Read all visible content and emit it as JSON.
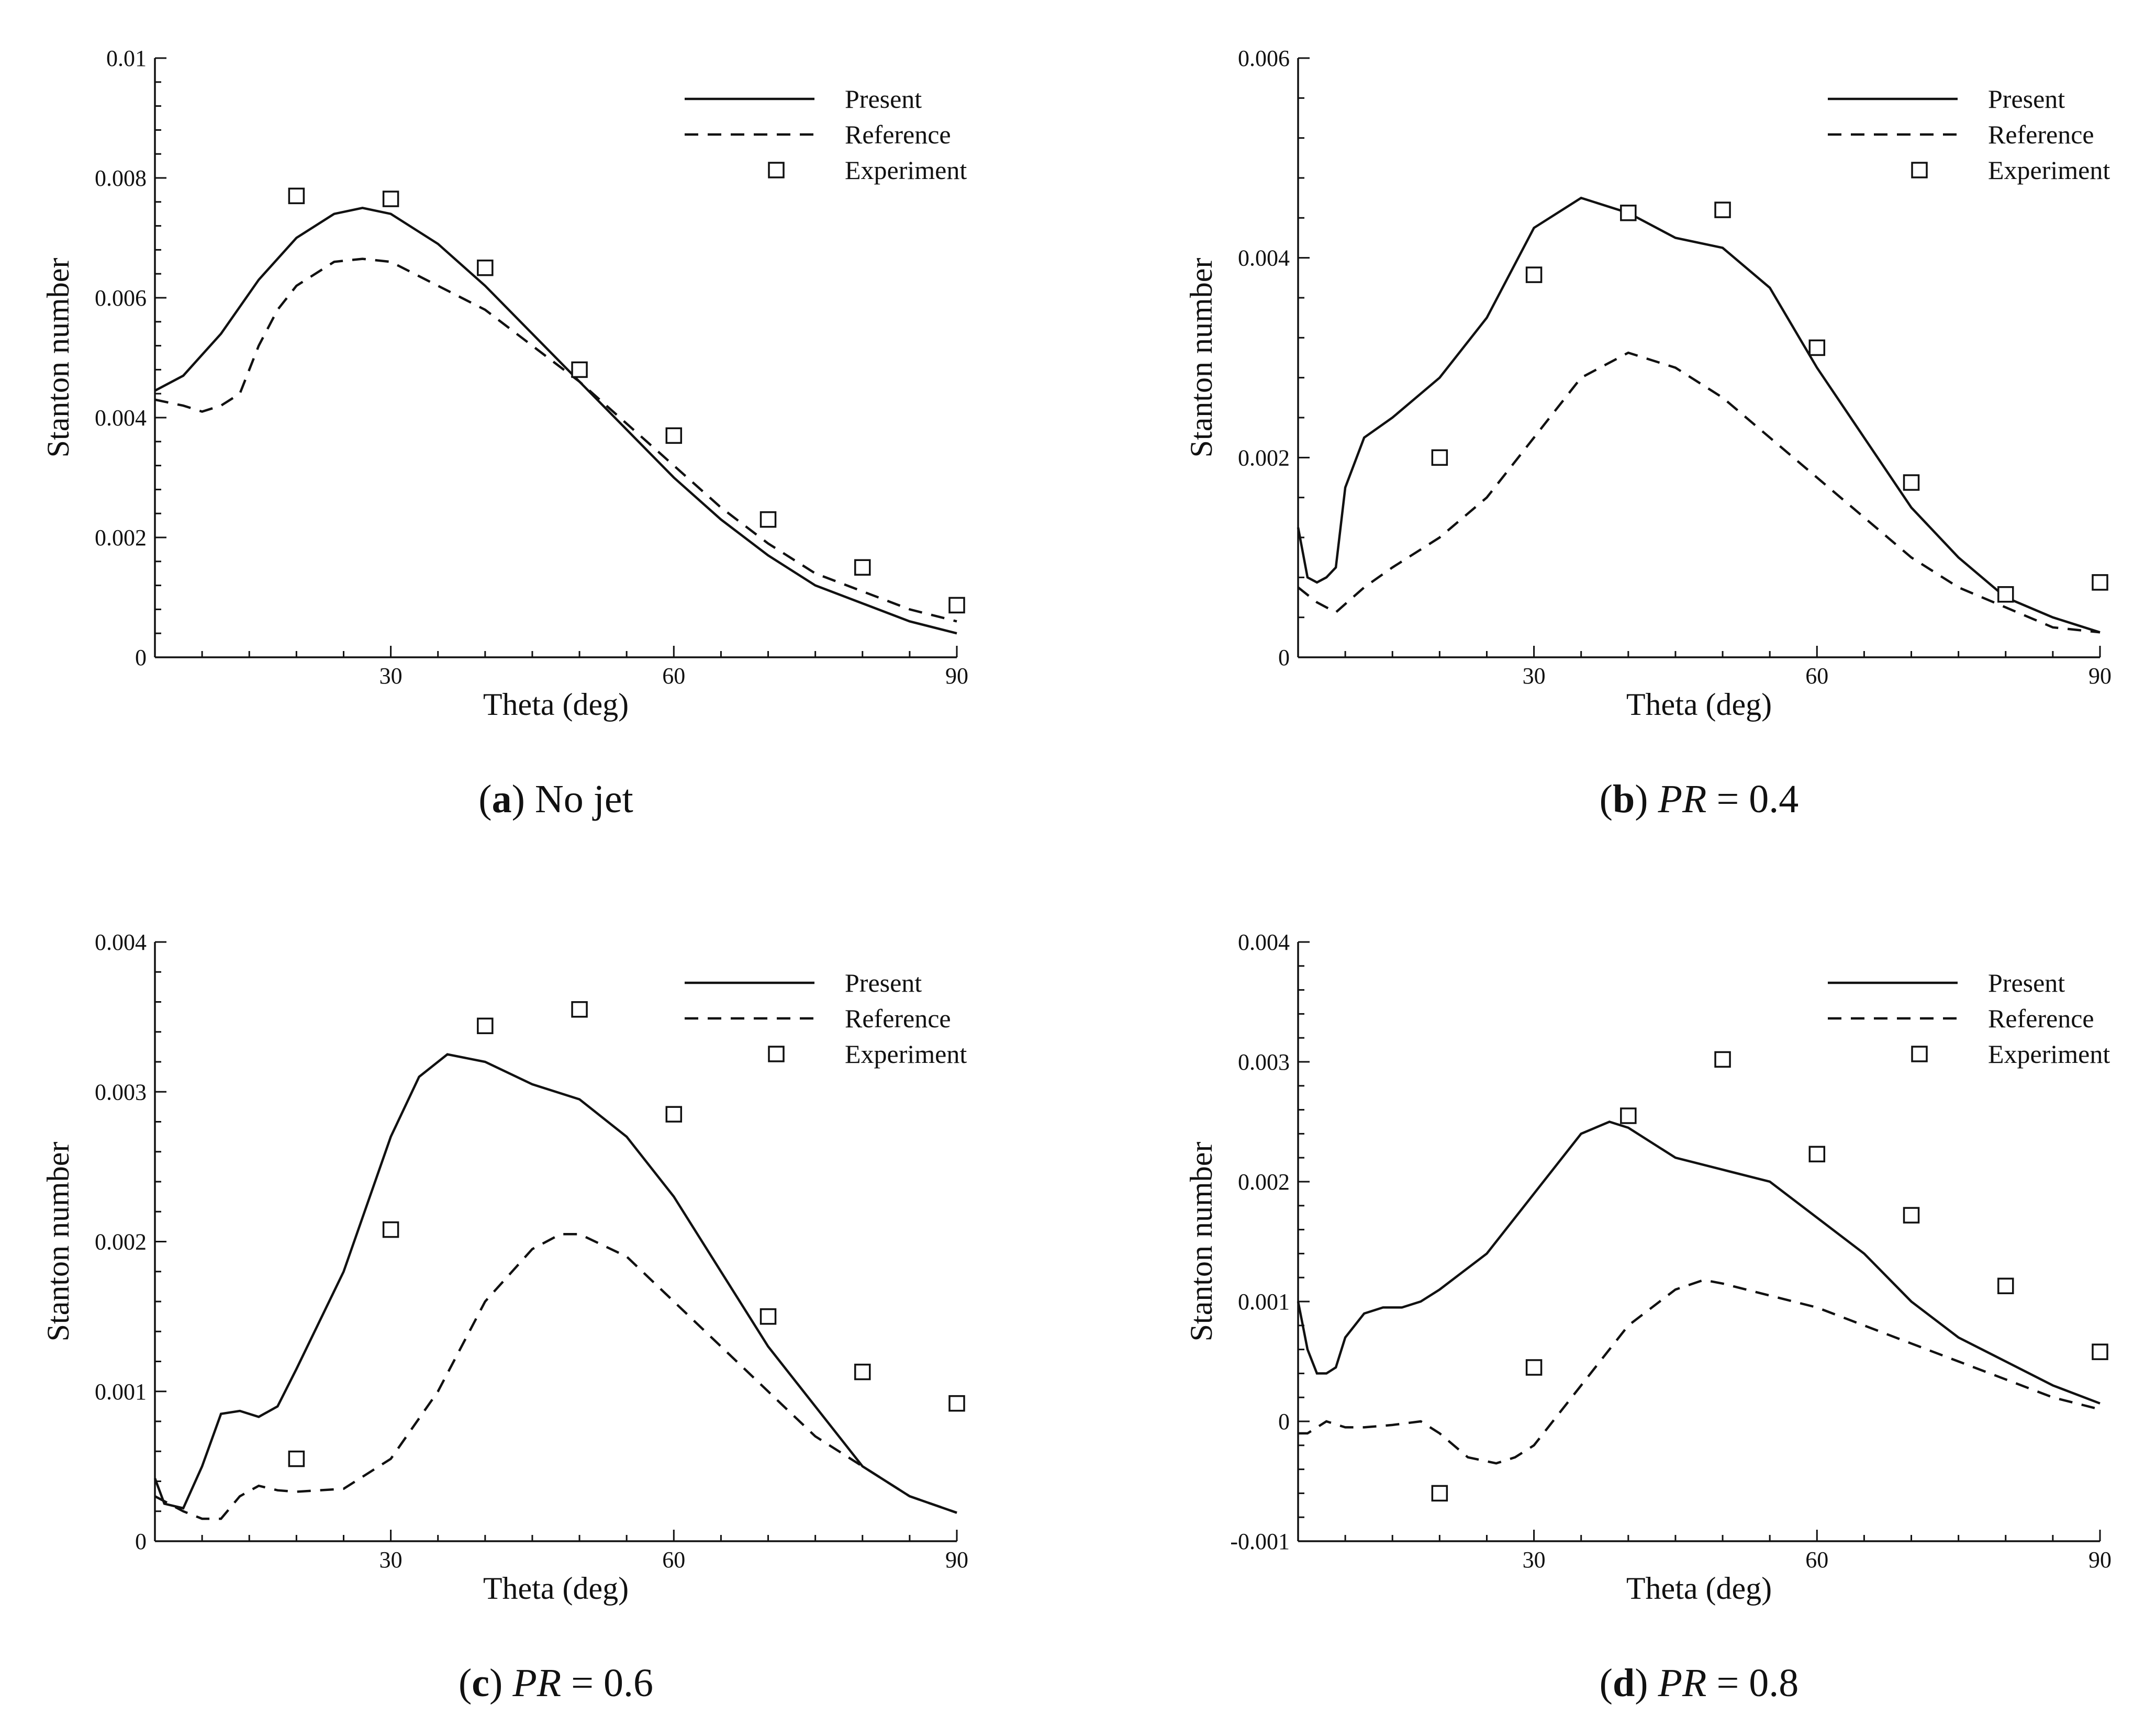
{
  "chart_data": [
    {
      "type": "line",
      "caption": {
        "letter": "a",
        "rest": " No jet",
        "pr_label": "",
        "pr_value": ""
      },
      "xlabel": "Theta (deg)",
      "ylabel": "Stanton number",
      "xlim": [
        5,
        90
      ],
      "ylim": [
        0,
        0.01
      ],
      "x_ticks": [
        30,
        60,
        90
      ],
      "y_ticks": [
        0,
        0.002,
        0.004,
        0.006,
        0.008,
        0.01
      ],
      "y_tick_labels": [
        "0",
        "0.002",
        "0.004",
        "0.006",
        "0.008",
        "0.01"
      ],
      "legend": {
        "position": "top-right",
        "entries": [
          "Present",
          "Reference",
          "Experiment"
        ]
      },
      "series": [
        {
          "name": "Present",
          "style": "solid",
          "x": [
            5,
            8,
            12,
            16,
            20,
            24,
            27,
            30,
            35,
            40,
            45,
            50,
            55,
            60,
            65,
            70,
            75,
            80,
            85,
            90
          ],
          "y": [
            0.00445,
            0.0047,
            0.0054,
            0.0063,
            0.007,
            0.0074,
            0.0075,
            0.0074,
            0.0069,
            0.0062,
            0.0054,
            0.0046,
            0.0038,
            0.003,
            0.0023,
            0.0017,
            0.0012,
            0.0009,
            0.0006,
            0.0004
          ]
        },
        {
          "name": "Reference",
          "style": "dashed",
          "x": [
            5,
            8,
            10,
            12,
            14,
            16,
            18,
            20,
            24,
            27,
            30,
            35,
            40,
            45,
            50,
            55,
            60,
            65,
            70,
            75,
            80,
            85,
            90
          ],
          "y": [
            0.0043,
            0.0042,
            0.0041,
            0.0042,
            0.0044,
            0.0052,
            0.0058,
            0.0062,
            0.0066,
            0.00665,
            0.0066,
            0.0062,
            0.0058,
            0.0052,
            0.0046,
            0.0039,
            0.0032,
            0.0025,
            0.0019,
            0.0014,
            0.0011,
            0.0008,
            0.0006
          ]
        },
        {
          "name": "Experiment",
          "style": "marker",
          "x": [
            20,
            30,
            40,
            50,
            60,
            70,
            80,
            90
          ],
          "y": [
            0.0077,
            0.00765,
            0.0065,
            0.0048,
            0.0037,
            0.0023,
            0.0015,
            0.00087
          ]
        }
      ]
    },
    {
      "type": "line",
      "caption": {
        "letter": "b",
        "rest": " = 0.4",
        "pr_label": "PR",
        "pr_value": "0.4"
      },
      "xlabel": "Theta (deg)",
      "ylabel": "Stanton number",
      "xlim": [
        5,
        90
      ],
      "ylim": [
        0,
        0.006
      ],
      "x_ticks": [
        30,
        60,
        90
      ],
      "y_ticks": [
        0,
        0.002,
        0.004,
        0.006
      ],
      "y_tick_labels": [
        "0",
        "0.002",
        "0.004",
        "0.006"
      ],
      "legend": {
        "position": "top-right",
        "entries": [
          "Present",
          "Reference",
          "Experiment"
        ]
      },
      "series": [
        {
          "name": "Present",
          "style": "solid",
          "x": [
            5,
            6,
            7,
            8,
            9,
            10,
            12,
            15,
            20,
            25,
            30,
            35,
            40,
            45,
            50,
            55,
            60,
            65,
            70,
            75,
            80,
            85,
            90
          ],
          "y": [
            0.0013,
            0.0008,
            0.00075,
            0.0008,
            0.0009,
            0.0017,
            0.0022,
            0.0024,
            0.0028,
            0.0034,
            0.0043,
            0.0046,
            0.00445,
            0.0042,
            0.0041,
            0.0037,
            0.0029,
            0.0022,
            0.0015,
            0.001,
            0.0006,
            0.0004,
            0.00025
          ]
        },
        {
          "name": "Reference",
          "style": "dashed",
          "x": [
            5,
            7,
            9,
            12,
            15,
            20,
            25,
            30,
            35,
            40,
            45,
            50,
            55,
            60,
            65,
            70,
            75,
            80,
            85,
            90
          ],
          "y": [
            0.0007,
            0.00055,
            0.00045,
            0.0007,
            0.0009,
            0.0012,
            0.0016,
            0.0022,
            0.0028,
            0.00305,
            0.0029,
            0.0026,
            0.0022,
            0.0018,
            0.0014,
            0.001,
            0.0007,
            0.0005,
            0.0003,
            0.00025
          ]
        },
        {
          "name": "Experiment",
          "style": "marker",
          "x": [
            20,
            30,
            40,
            50,
            60,
            70,
            80,
            90
          ],
          "y": [
            0.002,
            0.00383,
            0.00445,
            0.00448,
            0.0031,
            0.00175,
            0.00063,
            0.00075
          ]
        }
      ]
    },
    {
      "type": "line",
      "caption": {
        "letter": "c",
        "rest": " = 0.6",
        "pr_label": "PR",
        "pr_value": "0.6"
      },
      "xlabel": "Theta (deg)",
      "ylabel": "Stanton number",
      "xlim": [
        5,
        90
      ],
      "ylim": [
        0,
        0.004
      ],
      "x_ticks": [
        30,
        60,
        90
      ],
      "y_ticks": [
        0,
        0.001,
        0.002,
        0.003,
        0.004
      ],
      "y_tick_labels": [
        "0",
        "0.001",
        "0.002",
        "0.003",
        "0.004"
      ],
      "legend": {
        "position": "top-right",
        "entries": [
          "Present",
          "Reference",
          "Experiment"
        ]
      },
      "series": [
        {
          "name": "Present",
          "style": "solid",
          "x": [
            5,
            6,
            8,
            10,
            12,
            14,
            16,
            18,
            20,
            25,
            30,
            33,
            36,
            40,
            45,
            50,
            55,
            60,
            65,
            70,
            75,
            80,
            85,
            90
          ],
          "y": [
            0.00042,
            0.00025,
            0.00022,
            0.0005,
            0.00085,
            0.00087,
            0.00083,
            0.0009,
            0.00115,
            0.0018,
            0.0027,
            0.0031,
            0.00325,
            0.0032,
            0.00305,
            0.00295,
            0.0027,
            0.0023,
            0.0018,
            0.0013,
            0.0009,
            0.0005,
            0.0003,
            0.00019
          ]
        },
        {
          "name": "Reference",
          "style": "dashed",
          "x": [
            5,
            8,
            10,
            12,
            14,
            16,
            18,
            20,
            25,
            30,
            35,
            40,
            45,
            48,
            50,
            55,
            60,
            65,
            70,
            75,
            80,
            85,
            90
          ],
          "y": [
            0.0003,
            0.0002,
            0.00015,
            0.00015,
            0.0003,
            0.00037,
            0.00034,
            0.00033,
            0.00035,
            0.00055,
            0.001,
            0.0016,
            0.00195,
            0.00205,
            0.00205,
            0.0019,
            0.0016,
            0.0013,
            0.001,
            0.0007,
            0.0005,
            0.0003,
            0.00019
          ]
        },
        {
          "name": "Experiment",
          "style": "marker",
          "x": [
            20,
            30,
            40,
            50,
            60,
            70,
            80,
            90
          ],
          "y": [
            0.00055,
            0.00208,
            0.00344,
            0.00355,
            0.00285,
            0.0015,
            0.00113,
            0.00092
          ]
        }
      ]
    },
    {
      "type": "line",
      "caption": {
        "letter": "d",
        "rest": " = 0.8",
        "pr_label": "PR",
        "pr_value": "0.8"
      },
      "xlabel": "Theta (deg)",
      "ylabel": "Stanton number",
      "xlim": [
        5,
        90
      ],
      "ylim": [
        -0.001,
        0.004
      ],
      "x_ticks": [
        30,
        60,
        90
      ],
      "y_ticks": [
        -0.001,
        0,
        0.001,
        0.002,
        0.003,
        0.004
      ],
      "y_tick_labels": [
        "-0.001",
        "0",
        "0.001",
        "0.002",
        "0.003",
        "0.004"
      ],
      "legend": {
        "position": "top-right",
        "entries": [
          "Present",
          "Reference",
          "Experiment"
        ]
      },
      "series": [
        {
          "name": "Present",
          "style": "solid",
          "x": [
            5,
            6,
            7,
            8,
            9,
            10,
            12,
            14,
            16,
            18,
            20,
            25,
            30,
            35,
            38,
            40,
            45,
            50,
            55,
            60,
            65,
            70,
            75,
            80,
            85,
            90
          ],
          "y": [
            0.001,
            0.0006,
            0.0004,
            0.0004,
            0.00045,
            0.0007,
            0.0009,
            0.00095,
            0.00095,
            0.001,
            0.0011,
            0.0014,
            0.0019,
            0.0024,
            0.0025,
            0.00245,
            0.0022,
            0.0021,
            0.002,
            0.0017,
            0.0014,
            0.001,
            0.0007,
            0.0005,
            0.0003,
            0.00015
          ]
        },
        {
          "name": "Reference",
          "style": "dashed",
          "x": [
            5,
            6,
            8,
            10,
            12,
            15,
            18,
            20,
            23,
            26,
            28,
            30,
            35,
            40,
            45,
            48,
            50,
            55,
            60,
            65,
            70,
            75,
            80,
            85,
            90
          ],
          "y": [
            -0.0001,
            -0.0001,
            0.0,
            -5e-05,
            -5e-05,
            -3e-05,
            0.0,
            -0.0001,
            -0.0003,
            -0.00035,
            -0.0003,
            -0.0002,
            0.0003,
            0.0008,
            0.0011,
            0.00118,
            0.00115,
            0.00105,
            0.00095,
            0.0008,
            0.00065,
            0.0005,
            0.00035,
            0.0002,
            0.0001
          ]
        },
        {
          "name": "Experiment",
          "style": "marker",
          "x": [
            20,
            30,
            40,
            50,
            60,
            70,
            80,
            90
          ],
          "y": [
            -0.0006,
            0.00045,
            0.00255,
            0.00302,
            0.00223,
            0.00172,
            0.00113,
            0.00058
          ]
        }
      ]
    }
  ]
}
